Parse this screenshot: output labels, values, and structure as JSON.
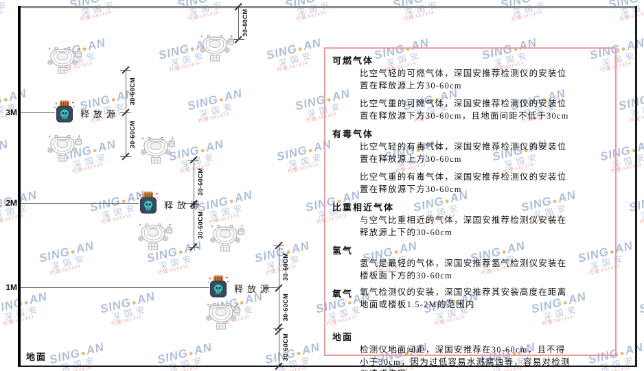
{
  "watermark": {
    "brand_prefix": "SING",
    "dot": "●",
    "brand_suffix": "AN",
    "company": "深国安",
    "sub_text": "代理:661434"
  },
  "diagram": {
    "axis_labels": [
      "3M",
      "2M",
      "1M"
    ],
    "ground_label": "地面",
    "release_source_label": "释放源",
    "dim_label": "30-60CM",
    "colors": {
      "source_body": "#36495e",
      "source_cap": "#c8702e",
      "source_skull": "#3bc3bc",
      "spark_red": "#e0534a",
      "panel_border": "#f09a98",
      "detector_outline": "#b2b2b2",
      "ceiling_gray": "#8c8c8c",
      "wall_black": "#000000"
    }
  },
  "panel": {
    "sections": [
      {
        "heading": "可燃气体",
        "inline": false,
        "paras": [
          "比空气轻的可燃气体，深国安推荐检测仪的安装位置在释放源上方30-60cm",
          "比空气重的可燃气体，深国安推荐检测仪的安装位置在释放源下方30-60cm，且地面间距不低于30cm"
        ]
      },
      {
        "heading": "有毒气体",
        "inline": false,
        "paras": [
          "比空气轻的有毒气体，深国安推荐检测仪的安装位置在释放源上方30-60cm",
          "比空气重的有毒气体，深国安推荐检测仪的安装位置在释放源下方30-60cm"
        ]
      },
      {
        "heading": "比重相近气体",
        "inline": false,
        "paras": [
          "与空气比重相近的气体，深国安推荐检测仪安装在释放源上下的30-60cm"
        ]
      },
      {
        "heading": "氢气",
        "inline": false,
        "paras": [
          "氢气是最轻的气体，深国安推荐氢气检测仪安装在楼板面下方的30-60cm"
        ]
      },
      {
        "heading": "氧气",
        "inline": true,
        "paras": [
          "氧气检测仪的安装，深国安推荐其安装高度在距离地面或楼板1.5-2M的范围内"
        ]
      },
      {
        "heading": "地面",
        "inline": false,
        "paras": [
          "检测仪地面间距，深国安推荐在30-60cm，且不得小于30cm，因为过低容易水溅腐蚀等，容易对检测仪造成伤害"
        ]
      }
    ]
  }
}
